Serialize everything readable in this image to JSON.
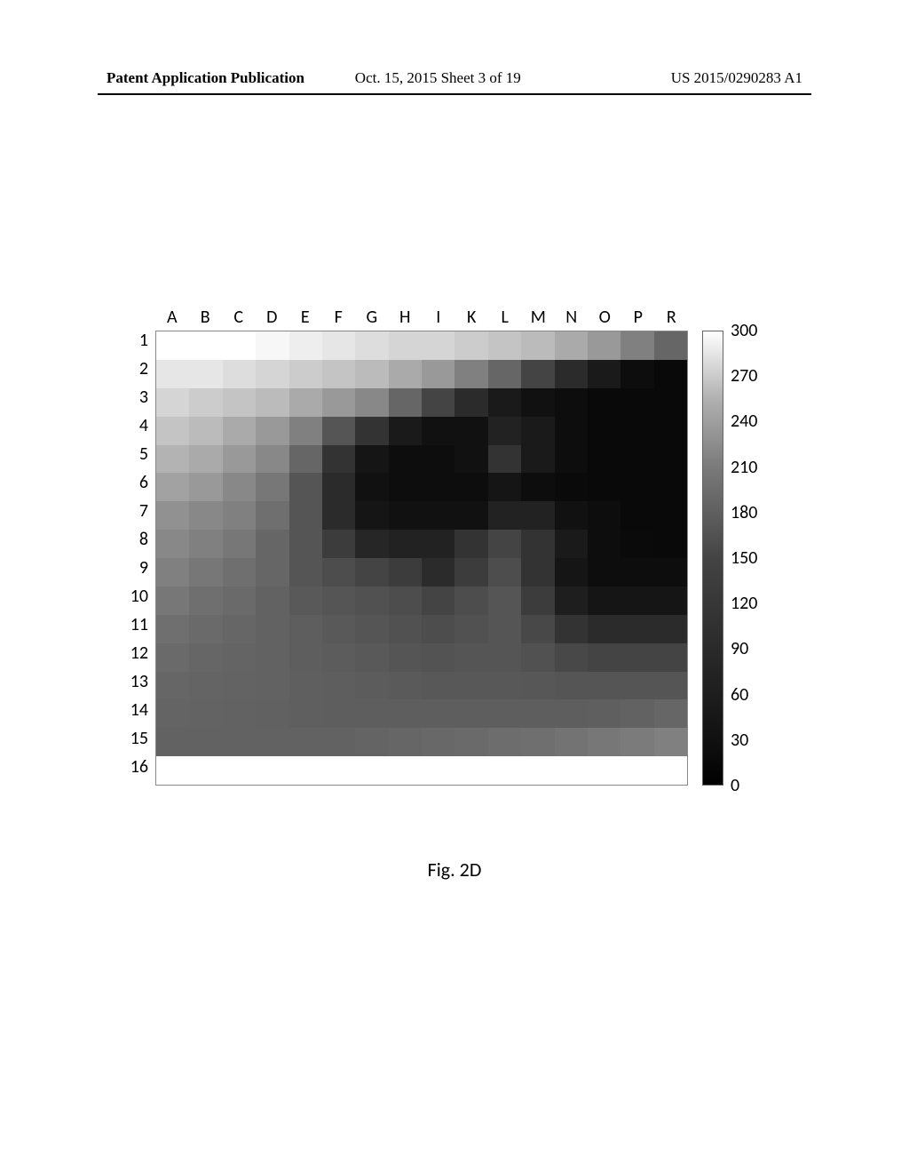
{
  "header": {
    "left": "Patent Application Publication",
    "center": "Oct. 15, 2015  Sheet 3 of 19",
    "right": "US 2015/0290283 A1"
  },
  "caption": "Fig. 2D",
  "heatmap": {
    "type": "heatmap",
    "cols": [
      "A",
      "B",
      "C",
      "D",
      "E",
      "F",
      "G",
      "H",
      "I",
      "K",
      "L",
      "M",
      "N",
      "O",
      "P",
      "R"
    ],
    "rows": [
      "1",
      "2",
      "3",
      "4",
      "5",
      "6",
      "7",
      "8",
      "9",
      "10",
      "11",
      "12",
      "13",
      "14",
      "15",
      "16"
    ],
    "vmin": 0,
    "vmax": 300,
    "colorbar_ticks": [
      300,
      270,
      240,
      210,
      180,
      150,
      120,
      90,
      60,
      30,
      0
    ],
    "border_color": "#888888",
    "background_color": "#ffffff",
    "label_font_family": "Calibri, Arial, sans-serif",
    "label_fontsize": 20,
    "values": [
      [
        300,
        300,
        300,
        290,
        280,
        270,
        260,
        250,
        250,
        240,
        230,
        220,
        200,
        180,
        150,
        120
      ],
      [
        270,
        270,
        260,
        250,
        240,
        230,
        220,
        200,
        180,
        150,
        120,
        80,
        50,
        30,
        15,
        10
      ],
      [
        250,
        240,
        230,
        220,
        200,
        180,
        160,
        120,
        80,
        50,
        30,
        20,
        15,
        10,
        10,
        10
      ],
      [
        230,
        220,
        200,
        180,
        150,
        100,
        60,
        30,
        20,
        20,
        40,
        30,
        15,
        10,
        10,
        10
      ],
      [
        210,
        200,
        180,
        160,
        120,
        60,
        25,
        15,
        15,
        20,
        60,
        30,
        15,
        10,
        10,
        10
      ],
      [
        190,
        180,
        160,
        140,
        100,
        50,
        20,
        15,
        15,
        15,
        25,
        15,
        12,
        10,
        10,
        10
      ],
      [
        170,
        160,
        150,
        130,
        100,
        50,
        25,
        20,
        20,
        20,
        40,
        40,
        20,
        15,
        10,
        10
      ],
      [
        160,
        150,
        140,
        120,
        100,
        70,
        45,
        40,
        40,
        60,
        80,
        60,
        30,
        15,
        12,
        10
      ],
      [
        150,
        140,
        130,
        120,
        100,
        90,
        80,
        70,
        50,
        70,
        90,
        60,
        25,
        15,
        15,
        15
      ],
      [
        140,
        130,
        125,
        115,
        105,
        100,
        95,
        90,
        80,
        90,
        100,
        70,
        35,
        25,
        25,
        25
      ],
      [
        130,
        125,
        120,
        115,
        110,
        105,
        100,
        95,
        90,
        95,
        100,
        85,
        60,
        50,
        50,
        50
      ],
      [
        125,
        120,
        118,
        115,
        110,
        108,
        105,
        100,
        98,
        100,
        100,
        95,
        85,
        80,
        80,
        80
      ],
      [
        120,
        118,
        116,
        115,
        112,
        110,
        108,
        106,
        104,
        104,
        104,
        102,
        100,
        100,
        100,
        100
      ],
      [
        118,
        116,
        115,
        114,
        112,
        111,
        110,
        110,
        110,
        110,
        110,
        110,
        110,
        112,
        115,
        120
      ],
      [
        115,
        115,
        115,
        115,
        115,
        115,
        118,
        120,
        122,
        125,
        128,
        130,
        135,
        140,
        145,
        150
      ],
      [
        300,
        300,
        300,
        300,
        300,
        300,
        300,
        300,
        300,
        300,
        300,
        300,
        300,
        300,
        300,
        300
      ]
    ]
  }
}
